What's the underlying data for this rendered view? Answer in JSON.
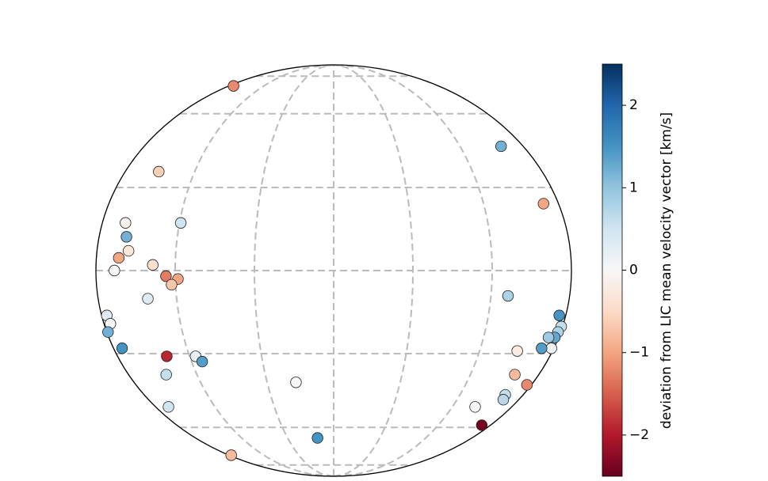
{
  "chart_data": {
    "type": "scatter",
    "projection": "mollweide",
    "xlim": [
      -180,
      180
    ],
    "ylim": [
      -90,
      90
    ],
    "lon_grid": [
      -120,
      -60,
      0,
      60,
      120
    ],
    "lat_grid": [
      -80,
      -60,
      -30,
      0,
      30,
      60,
      80
    ],
    "grid": true,
    "colormap": "RdBu",
    "x": [
      -172,
      159,
      -151,
      168,
      -162,
      -119,
      -159,
      -156,
      -163,
      -137,
      -166,
      -127,
      -118,
      -123,
      -142,
      133,
      -176,
      -175,
      -179,
      175,
      179,
      178,
      177,
      172,
      178,
      170,
      -173,
      151,
      -139,
      -115,
      -111,
      -147,
      159,
      -34,
      176,
      163,
      165,
      143,
      -167,
      170,
      -21,
      -176
    ],
    "y": [
      74,
      46,
      36,
      24,
      17,
      17,
      12,
      7,
      4.5,
      2,
      0,
      -2,
      -3,
      -5,
      -10,
      -9,
      -16,
      -19,
      -22,
      -16,
      -20,
      -22,
      -24,
      -24,
      -28,
      -28,
      -28,
      -29,
      -31,
      -31,
      -33,
      -38,
      -38,
      -41,
      -42,
      -46,
      -48,
      -51,
      -51,
      -59,
      -65,
      -74
    ],
    "values": [
      -1.2,
      1.2,
      -0.6,
      -1.0,
      -0.1,
      0.5,
      1.2,
      -0.3,
      -1.0,
      -0.4,
      0.0,
      -1.3,
      -1.0,
      -0.7,
      0.3,
      0.8,
      0.3,
      0.0,
      1.2,
      1.5,
      0.6,
      0.8,
      1.3,
      0.9,
      0.1,
      1.4,
      1.5,
      -0.2,
      -1.9,
      0.2,
      1.4,
      0.6,
      -0.8,
      0.0,
      -1.2,
      0.6,
      0.7,
      0.0,
      0.5,
      -2.4,
      1.5,
      -0.8
    ],
    "colorbar": {
      "label": "deviation from LIC mean velocity vector [km/s]",
      "lim": [
        -2.5,
        2.5
      ],
      "ticks": [
        {
          "value": -2,
          "label": "−2"
        },
        {
          "value": -1,
          "label": "−1"
        },
        0,
        1,
        2
      ]
    }
  }
}
